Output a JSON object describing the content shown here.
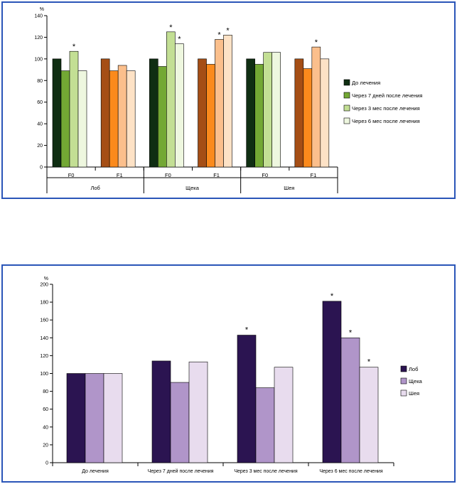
{
  "chart_data": [
    {
      "type": "bar",
      "title": "",
      "ylabel": "%",
      "ylim": [
        0,
        140
      ],
      "yticks": [
        0,
        20,
        40,
        60,
        80,
        100,
        120,
        140
      ],
      "group_labels": [
        "Лоб",
        "Щека",
        "Шея"
      ],
      "categories": [
        "F0",
        "F1",
        "F0",
        "F1",
        "F0",
        "F1"
      ],
      "category_group": [
        0,
        0,
        1,
        1,
        2,
        2
      ],
      "series": [
        {
          "name": "До лечения",
          "values": [
            100,
            100,
            100,
            100,
            100,
            100
          ]
        },
        {
          "name": "Через 7 дней после лечения",
          "values": [
            89,
            89,
            93,
            95,
            95,
            91
          ]
        },
        {
          "name": "Через 3 мес после лечения",
          "values": [
            107,
            94,
            125,
            118,
            106,
            111
          ]
        },
        {
          "name": "Через 6 мес после лечения",
          "values": [
            89,
            89,
            114,
            122,
            106,
            100
          ]
        }
      ],
      "colors": {
        "F0": [
          "#0f2e12",
          "#73a834",
          "#c3df94",
          "#eef7df"
        ],
        "F1": [
          "#a54e15",
          "#fb8a1c",
          "#fbbf8c",
          "#fde2c6"
        ]
      },
      "significance": [
        [
          0,
          2
        ],
        [
          2,
          2
        ],
        [
          2,
          3
        ],
        [
          3,
          2
        ],
        [
          3,
          3
        ],
        [
          5,
          2
        ]
      ],
      "significance_marker": "*",
      "legend_position": "right",
      "legend_colors": [
        "#0f2e12",
        "#73a834",
        "#c3df94",
        "#eef7df"
      ],
      "grid": false
    },
    {
      "type": "bar",
      "title": "",
      "ylabel": "%",
      "ylim": [
        0,
        200
      ],
      "yticks": [
        0,
        20,
        40,
        60,
        80,
        100,
        120,
        140,
        160,
        180,
        200
      ],
      "categories": [
        "До лечения",
        "Через 7 дней после лечения",
        "Через 3 мес после лечения",
        "Через 6 мес после лечения"
      ],
      "series": [
        {
          "name": "Лоб",
          "values": [
            100,
            114,
            143,
            181
          ],
          "color": "#2b1451"
        },
        {
          "name": "Щека",
          "values": [
            100,
            90,
            84,
            140
          ],
          "color": "#b095c9"
        },
        {
          "name": "Шея",
          "values": [
            100,
            113,
            107,
            107
          ],
          "color": "#e8dcee"
        }
      ],
      "significance": [
        [
          2,
          0
        ],
        [
          3,
          0
        ],
        [
          3,
          1
        ],
        [
          3,
          2
        ]
      ],
      "significance_marker": "*",
      "legend_position": "right",
      "grid": false
    }
  ]
}
